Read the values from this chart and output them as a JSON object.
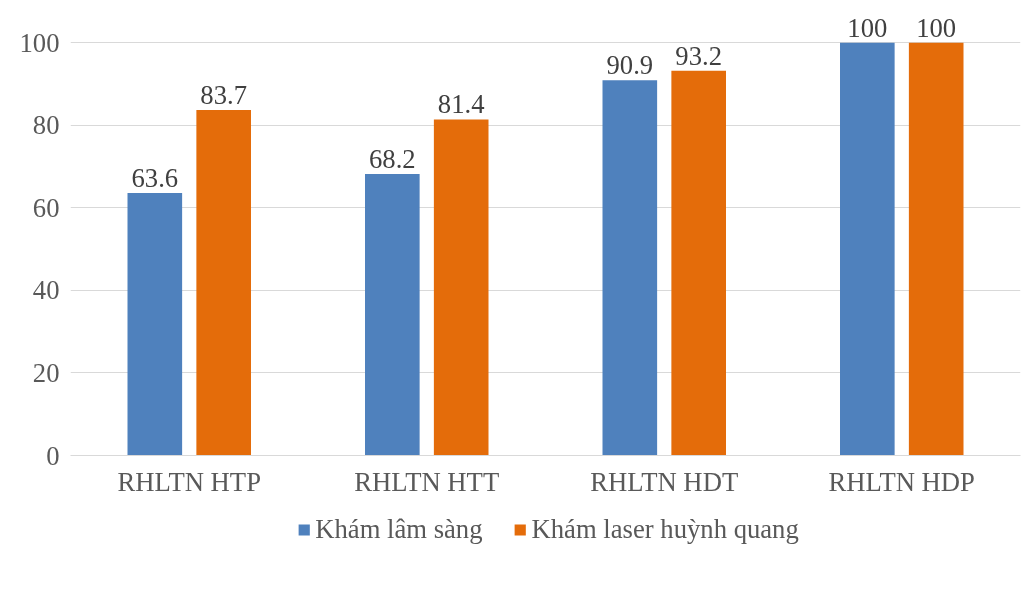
{
  "chart_data": {
    "type": "bar",
    "categories": [
      "RHLTN HTP",
      "RHLTN HTT",
      "RHLTN HDT",
      "RHLTN HDP"
    ],
    "series": [
      {
        "name": "Khám lâm sàng",
        "color": "#4f81bd",
        "values": [
          63.6,
          68.2,
          90.9,
          100
        ]
      },
      {
        "name": "Khám laser huỳnh quang",
        "color": "#e46c0a",
        "values": [
          83.7,
          81.4,
          93.2,
          100
        ]
      }
    ],
    "ylim": [
      0,
      100
    ],
    "yticks": [
      0,
      20,
      40,
      60,
      80,
      100
    ],
    "grid": "y",
    "legend": "bottom",
    "data_labels": true
  }
}
